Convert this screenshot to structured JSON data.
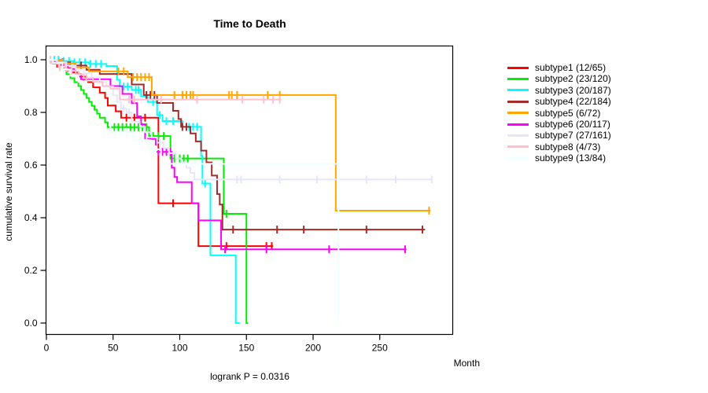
{
  "title": "Time to Death",
  "y_axis": {
    "label": "cumulative survival rate",
    "ticks": [
      "0.0",
      "0.2",
      "0.4",
      "0.6",
      "0.8",
      "1.0"
    ]
  },
  "x_axis": {
    "label": "Month",
    "ticks": [
      "0",
      "50",
      "100",
      "150",
      "200",
      "250"
    ]
  },
  "footer": "logrank P = 0.0316",
  "chart_data": {
    "type": "line",
    "variant": "kaplan-meier-step",
    "title": "Time to Death",
    "xlabel": "Month",
    "ylabel": "cumulative survival rate",
    "annotation": "logrank P = 0.0316",
    "xlim": [
      0,
      304
    ],
    "ylim": [
      0.0,
      1.0
    ],
    "x_ticks": [
      0,
      50,
      100,
      150,
      200,
      250
    ],
    "y_ticks": [
      0.0,
      0.2,
      0.4,
      0.6,
      0.8,
      1.0
    ],
    "grid": false,
    "legend_position": "right-outside",
    "series": [
      {
        "name": "subtype1",
        "label": "subtype1 (12/65)",
        "color": "#FF0000",
        "points": [
          [
            0,
            1.0
          ],
          [
            5,
            0.985
          ],
          [
            12,
            0.968
          ],
          [
            18,
            0.952
          ],
          [
            24,
            0.936
          ],
          [
            30,
            0.915
          ],
          [
            35,
            0.895
          ],
          [
            40,
            0.875
          ],
          [
            44,
            0.855
          ],
          [
            46,
            0.826
          ],
          [
            52,
            0.804
          ],
          [
            56,
            0.78
          ],
          [
            84,
            0.455
          ],
          [
            114,
            0.292
          ],
          [
            170,
            0.292
          ]
        ],
        "censors": [
          8,
          16,
          28,
          60,
          66,
          74,
          95,
          135,
          165,
          169
        ]
      },
      {
        "name": "subtype2",
        "label": "subtype2 (23/120)",
        "color": "#00EE00",
        "points": [
          [
            0,
            1.0
          ],
          [
            8,
            0.985
          ],
          [
            12,
            0.965
          ],
          [
            15,
            0.945
          ],
          [
            18,
            0.93
          ],
          [
            21,
            0.915
          ],
          [
            24,
            0.9
          ],
          [
            26,
            0.885
          ],
          [
            28,
            0.87
          ],
          [
            30,
            0.855
          ],
          [
            32,
            0.84
          ],
          [
            34,
            0.825
          ],
          [
            36,
            0.81
          ],
          [
            38,
            0.795
          ],
          [
            40,
            0.78
          ],
          [
            44,
            0.762
          ],
          [
            46,
            0.744
          ],
          [
            77,
            0.71
          ],
          [
            93,
            0.625
          ],
          [
            133,
            0.415
          ],
          [
            150,
            0.0
          ],
          [
            151,
            0.0
          ]
        ],
        "censors": [
          48,
          51,
          54,
          57,
          60,
          63,
          66,
          69,
          72,
          75,
          80,
          84,
          88,
          96,
          100,
          103,
          106,
          135
        ]
      },
      {
        "name": "subtype3",
        "label": "subtype3 (20/187)",
        "color": "#00FFFF",
        "points": [
          [
            0,
            1.0
          ],
          [
            10,
            0.995
          ],
          [
            20,
            0.99
          ],
          [
            32,
            0.984
          ],
          [
            45,
            0.976
          ],
          [
            53,
            0.924
          ],
          [
            55,
            0.898
          ],
          [
            64,
            0.886
          ],
          [
            71,
            0.861
          ],
          [
            76,
            0.84
          ],
          [
            83,
            0.79
          ],
          [
            87,
            0.767
          ],
          [
            102,
            0.745
          ],
          [
            116,
            0.635
          ],
          [
            117,
            0.53
          ],
          [
            123,
            0.257
          ],
          [
            142,
            0.0
          ],
          [
            145,
            0.0
          ]
        ],
        "censors": [
          3,
          6,
          9,
          13,
          17,
          21,
          25,
          29,
          33,
          37,
          41,
          58,
          61,
          67,
          69,
          80,
          85,
          90,
          95,
          107,
          110,
          113,
          119
        ]
      },
      {
        "name": "subtype4",
        "label": "subtype4 (22/184)",
        "color": "#A52A2A",
        "points": [
          [
            0,
            1.0
          ],
          [
            8,
            0.99
          ],
          [
            18,
            0.978
          ],
          [
            30,
            0.962
          ],
          [
            40,
            0.946
          ],
          [
            64,
            0.906
          ],
          [
            73,
            0.866
          ],
          [
            83,
            0.836
          ],
          [
            95,
            0.806
          ],
          [
            99,
            0.775
          ],
          [
            101,
            0.745
          ],
          [
            108,
            0.72
          ],
          [
            112,
            0.69
          ],
          [
            116,
            0.655
          ],
          [
            120,
            0.61
          ],
          [
            124,
            0.56
          ],
          [
            128,
            0.49
          ],
          [
            130,
            0.45
          ],
          [
            132,
            0.355
          ],
          [
            284,
            0.355
          ]
        ],
        "censors": [
          12,
          26,
          75,
          78,
          81,
          102,
          105,
          140,
          173,
          193,
          240,
          282
        ]
      },
      {
        "name": "subtype5",
        "label": "subtype5 (6/72)",
        "color": "#FFA500",
        "points": [
          [
            0,
            1.0
          ],
          [
            12,
            0.986
          ],
          [
            22,
            0.971
          ],
          [
            32,
            0.956
          ],
          [
            61,
            0.934
          ],
          [
            79,
            0.866
          ],
          [
            217,
            0.427
          ],
          [
            288,
            0.427
          ]
        ],
        "censors": [
          54,
          58,
          65,
          68,
          71,
          74,
          77,
          96,
          102,
          105,
          108,
          110,
          137,
          139,
          143,
          166,
          175,
          287
        ]
      },
      {
        "name": "subtype6",
        "label": "subtype6 (20/117)",
        "color": "#FF00FF",
        "points": [
          [
            0,
            1.0
          ],
          [
            5,
            0.99
          ],
          [
            10,
            0.98
          ],
          [
            16,
            0.965
          ],
          [
            22,
            0.945
          ],
          [
            26,
            0.926
          ],
          [
            48,
            0.9
          ],
          [
            57,
            0.87
          ],
          [
            64,
            0.835
          ],
          [
            68,
            0.785
          ],
          [
            71,
            0.755
          ],
          [
            74,
            0.7
          ],
          [
            82,
            0.65
          ],
          [
            94,
            0.59
          ],
          [
            96,
            0.555
          ],
          [
            98,
            0.535
          ],
          [
            109,
            0.455
          ],
          [
            114,
            0.39
          ],
          [
            131,
            0.28
          ],
          [
            270,
            0.28
          ]
        ],
        "censors": [
          84,
          87,
          90,
          93,
          134,
          165,
          212,
          269
        ]
      },
      {
        "name": "subtype7",
        "label": "subtype7 (27/161)",
        "color": "#E6E6FA",
        "points": [
          [
            0,
            1.0
          ],
          [
            8,
            0.99
          ],
          [
            15,
            0.978
          ],
          [
            22,
            0.963
          ],
          [
            28,
            0.948
          ],
          [
            34,
            0.932
          ],
          [
            40,
            0.915
          ],
          [
            45,
            0.898
          ],
          [
            50,
            0.865
          ],
          [
            53,
            0.84
          ],
          [
            56,
            0.815
          ],
          [
            60,
            0.8
          ],
          [
            64,
            0.765
          ],
          [
            70,
            0.745
          ],
          [
            74,
            0.725
          ],
          [
            79,
            0.705
          ],
          [
            83,
            0.685
          ],
          [
            88,
            0.665
          ],
          [
            92,
            0.645
          ],
          [
            97,
            0.625
          ],
          [
            101,
            0.61
          ],
          [
            105,
            0.59
          ],
          [
            108,
            0.57
          ],
          [
            111,
            0.545
          ],
          [
            290,
            0.545
          ]
        ],
        "censors": [
          58,
          62,
          85,
          143,
          146,
          175,
          203,
          240,
          262,
          289
        ]
      },
      {
        "name": "subtype8",
        "label": "subtype8 (4/73)",
        "color": "#FFC0CB",
        "points": [
          [
            0,
            1.0
          ],
          [
            4,
            0.986
          ],
          [
            9,
            0.972
          ],
          [
            15,
            0.958
          ],
          [
            22,
            0.944
          ],
          [
            28,
            0.93
          ],
          [
            35,
            0.916
          ],
          [
            42,
            0.9
          ],
          [
            48,
            0.89
          ],
          [
            55,
            0.849
          ],
          [
            176,
            0.849
          ]
        ],
        "censors": [
          3,
          10,
          14,
          19,
          24,
          30,
          62,
          66,
          86,
          113,
          147,
          163,
          170,
          175
        ]
      },
      {
        "name": "subtype9",
        "label": "subtype9 (13/84)",
        "color": "#F0FFFF",
        "points": [
          [
            0,
            1.0
          ],
          [
            5,
            0.988
          ],
          [
            12,
            0.964
          ],
          [
            18,
            0.94
          ],
          [
            24,
            0.916
          ],
          [
            30,
            0.89
          ],
          [
            35,
            0.868
          ],
          [
            39,
            0.845
          ],
          [
            42,
            0.82
          ],
          [
            44,
            0.8
          ],
          [
            46,
            0.772
          ],
          [
            48,
            0.726
          ],
          [
            65,
            0.696
          ],
          [
            77,
            0.66
          ],
          [
            86,
            0.605
          ],
          [
            219,
            0.605
          ],
          [
            219,
            0.0
          ],
          [
            221,
            0.0
          ]
        ],
        "censors": [
          52,
          56,
          60,
          75,
          78,
          80,
          82,
          110,
          112
        ]
      }
    ]
  }
}
